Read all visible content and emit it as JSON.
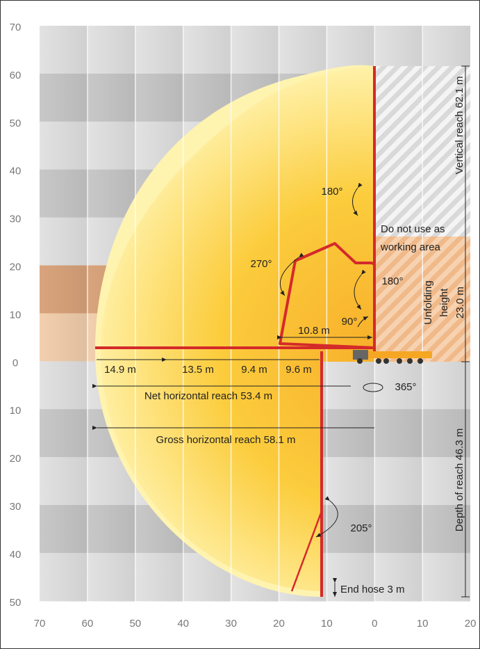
{
  "axes": {
    "y_labels": [
      "70",
      "60",
      "50",
      "40",
      "30",
      "20",
      "10",
      "0",
      "10",
      "20",
      "30",
      "40",
      "50"
    ],
    "x_labels": [
      "70",
      "60",
      "50",
      "40",
      "30",
      "20",
      "10",
      "0",
      "10",
      "20"
    ]
  },
  "annotations": [
    {
      "text": "Vertical reach 62.1 m"
    },
    {
      "lines": [
        "Do not use as",
        "working area"
      ]
    },
    {
      "text": "180°"
    },
    {
      "text": "270°"
    },
    {
      "text": "180°"
    },
    {
      "text": "90°"
    },
    {
      "text": "10.8 m"
    },
    {
      "lines": [
        "Unfolding",
        "height",
        "23.0 m"
      ]
    },
    {
      "text": "14.9 m"
    },
    {
      "text": "13.5 m"
    },
    {
      "text": "9.4 m"
    },
    {
      "text": "9.6 m"
    },
    {
      "text": "Net horizontal reach 53.4 m"
    },
    {
      "text": "365°"
    },
    {
      "text": "Gross horizontal reach 58.1 m"
    },
    {
      "text": "Depth of reach 46.3 m"
    },
    {
      "text": "205°"
    },
    {
      "text": "End hose 3 m"
    }
  ]
}
